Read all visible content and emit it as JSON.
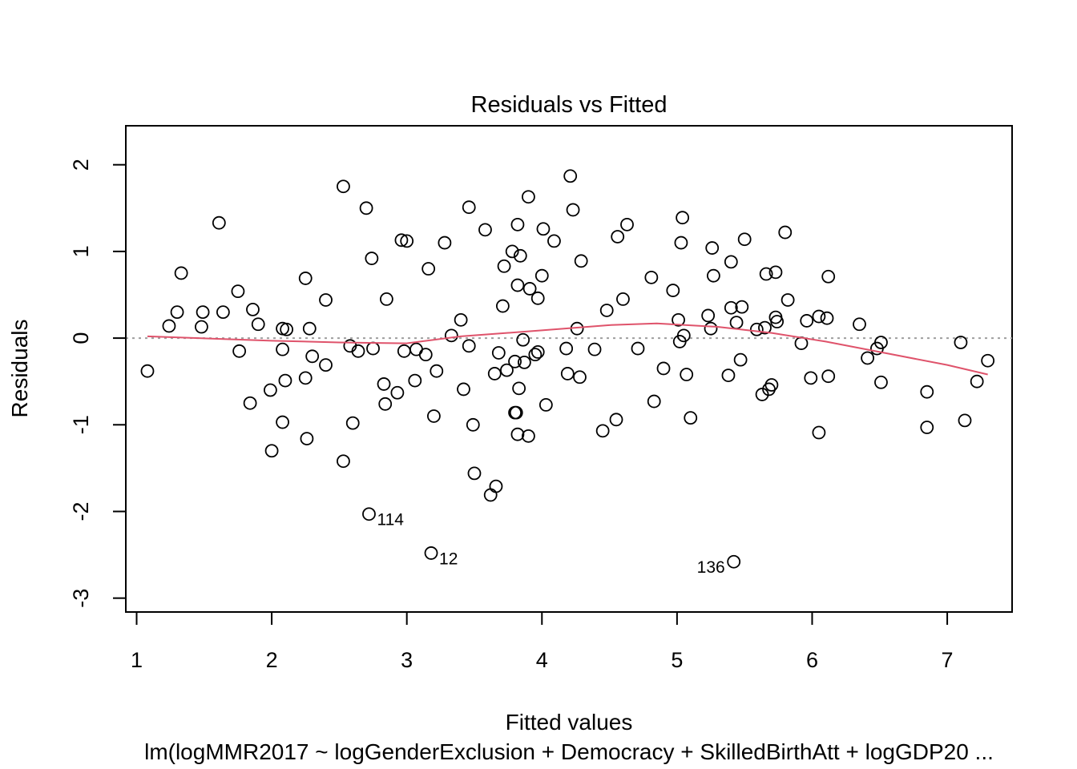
{
  "chart_data": {
    "type": "scatter",
    "title": "Residuals vs Fitted",
    "subtitle": "lm(logMMR2017 ~ logGenderExclusion + Democracy + SkilledBirthAtt + logGDP20 ...",
    "xlabel": "Fitted values",
    "ylabel": "Residuals",
    "xlim": [
      0.92,
      7.48
    ],
    "ylim": [
      -3.16,
      2.45
    ],
    "xticks": [
      1,
      2,
      3,
      4,
      5,
      6,
      7
    ],
    "yticks": [
      -3,
      -2,
      -1,
      0,
      1,
      2
    ],
    "reference_line_y": 0,
    "colors": {
      "points": "#000000",
      "smooth": "#df536b",
      "reference": "#9e9e9e"
    },
    "points": [
      {
        "x": 1.08,
        "y": -0.38
      },
      {
        "x": 1.24,
        "y": 0.14
      },
      {
        "x": 1.3,
        "y": 0.3
      },
      {
        "x": 1.33,
        "y": 0.75
      },
      {
        "x": 1.48,
        "y": 0.13
      },
      {
        "x": 1.49,
        "y": 0.3
      },
      {
        "x": 1.61,
        "y": 1.33
      },
      {
        "x": 1.64,
        "y": 0.3
      },
      {
        "x": 1.75,
        "y": 0.54
      },
      {
        "x": 1.76,
        "y": -0.15
      },
      {
        "x": 1.84,
        "y": -0.75
      },
      {
        "x": 1.86,
        "y": 0.33
      },
      {
        "x": 1.9,
        "y": 0.16
      },
      {
        "x": 1.99,
        "y": -0.6
      },
      {
        "x": 2.0,
        "y": -1.3
      },
      {
        "x": 2.08,
        "y": 0.11
      },
      {
        "x": 2.08,
        "y": -0.13
      },
      {
        "x": 2.08,
        "y": -0.97
      },
      {
        "x": 2.1,
        "y": -0.49
      },
      {
        "x": 2.11,
        "y": 0.1
      },
      {
        "x": 2.25,
        "y": 0.69
      },
      {
        "x": 2.25,
        "y": -0.46
      },
      {
        "x": 2.26,
        "y": -1.16
      },
      {
        "x": 2.28,
        "y": 0.11
      },
      {
        "x": 2.3,
        "y": -0.21
      },
      {
        "x": 2.4,
        "y": 0.44
      },
      {
        "x": 2.4,
        "y": -0.31
      },
      {
        "x": 2.53,
        "y": 1.75
      },
      {
        "x": 2.53,
        "y": -1.42
      },
      {
        "x": 2.58,
        "y": -0.09
      },
      {
        "x": 2.6,
        "y": -0.98
      },
      {
        "x": 2.64,
        "y": -0.15
      },
      {
        "x": 2.7,
        "y": 1.5
      },
      {
        "x": 2.72,
        "y": -2.03,
        "label": "114"
      },
      {
        "x": 2.74,
        "y": 0.92
      },
      {
        "x": 2.75,
        "y": -0.12
      },
      {
        "x": 2.83,
        "y": -0.53
      },
      {
        "x": 2.84,
        "y": -0.76
      },
      {
        "x": 2.85,
        "y": 0.45
      },
      {
        "x": 2.93,
        "y": -0.63
      },
      {
        "x": 2.96,
        "y": 1.13
      },
      {
        "x": 2.98,
        "y": -0.15
      },
      {
        "x": 3.0,
        "y": 1.12
      },
      {
        "x": 3.06,
        "y": -0.49
      },
      {
        "x": 3.07,
        "y": -0.13
      },
      {
        "x": 3.14,
        "y": -0.19
      },
      {
        "x": 3.16,
        "y": 0.8
      },
      {
        "x": 3.18,
        "y": -2.48,
        "label": "12"
      },
      {
        "x": 3.2,
        "y": -0.9
      },
      {
        "x": 3.22,
        "y": -0.38
      },
      {
        "x": 3.28,
        "y": 1.1
      },
      {
        "x": 3.33,
        "y": 0.03
      },
      {
        "x": 3.4,
        "y": 0.21
      },
      {
        "x": 3.42,
        "y": -0.59
      },
      {
        "x": 3.46,
        "y": 1.51
      },
      {
        "x": 3.46,
        "y": -0.09
      },
      {
        "x": 3.49,
        "y": -1.0
      },
      {
        "x": 3.5,
        "y": -1.56
      },
      {
        "x": 3.58,
        "y": 1.25
      },
      {
        "x": 3.62,
        "y": -1.81
      },
      {
        "x": 3.65,
        "y": -0.41
      },
      {
        "x": 3.66,
        "y": -1.71
      },
      {
        "x": 3.68,
        "y": -0.17
      },
      {
        "x": 3.71,
        "y": 0.37
      },
      {
        "x": 3.72,
        "y": 0.83
      },
      {
        "x": 3.74,
        "y": -0.37
      },
      {
        "x": 3.78,
        "y": 1.0
      },
      {
        "x": 3.8,
        "y": -0.86
      },
      {
        "x": 3.8,
        "y": -0.27
      },
      {
        "x": 3.81,
        "y": -0.86
      },
      {
        "x": 3.82,
        "y": 0.61
      },
      {
        "x": 3.82,
        "y": -1.11
      },
      {
        "x": 3.82,
        "y": 1.31
      },
      {
        "x": 3.83,
        "y": -0.58
      },
      {
        "x": 3.84,
        "y": 0.95
      },
      {
        "x": 3.86,
        "y": -0.02
      },
      {
        "x": 3.87,
        "y": -0.28
      },
      {
        "x": 3.9,
        "y": 1.63
      },
      {
        "x": 3.9,
        "y": -1.13
      },
      {
        "x": 3.91,
        "y": 0.57
      },
      {
        "x": 3.95,
        "y": -0.19
      },
      {
        "x": 3.97,
        "y": -0.16
      },
      {
        "x": 3.97,
        "y": 0.46
      },
      {
        "x": 4.0,
        "y": 0.72
      },
      {
        "x": 4.01,
        "y": 1.26
      },
      {
        "x": 4.03,
        "y": -0.77
      },
      {
        "x": 4.09,
        "y": 1.12
      },
      {
        "x": 4.18,
        "y": -0.12
      },
      {
        "x": 4.19,
        "y": -0.41
      },
      {
        "x": 4.21,
        "y": 1.87
      },
      {
        "x": 4.23,
        "y": 1.48
      },
      {
        "x": 4.26,
        "y": 0.11
      },
      {
        "x": 4.28,
        "y": -0.45
      },
      {
        "x": 4.29,
        "y": 0.89
      },
      {
        "x": 4.39,
        "y": -0.13
      },
      {
        "x": 4.45,
        "y": -1.07
      },
      {
        "x": 4.48,
        "y": 0.32
      },
      {
        "x": 4.55,
        "y": -0.94
      },
      {
        "x": 4.56,
        "y": 1.17
      },
      {
        "x": 4.6,
        "y": 0.45
      },
      {
        "x": 4.63,
        "y": 1.31
      },
      {
        "x": 4.71,
        "y": -0.12
      },
      {
        "x": 4.81,
        "y": 0.7
      },
      {
        "x": 4.83,
        "y": -0.73
      },
      {
        "x": 4.9,
        "y": -0.35
      },
      {
        "x": 4.97,
        "y": 0.55
      },
      {
        "x": 5.01,
        "y": 0.21
      },
      {
        "x": 5.02,
        "y": -0.04
      },
      {
        "x": 5.03,
        "y": 1.1
      },
      {
        "x": 5.04,
        "y": 1.39
      },
      {
        "x": 5.05,
        "y": 0.03
      },
      {
        "x": 5.07,
        "y": -0.42
      },
      {
        "x": 5.1,
        "y": -0.92
      },
      {
        "x": 5.23,
        "y": 0.26
      },
      {
        "x": 5.25,
        "y": 0.11
      },
      {
        "x": 5.26,
        "y": 1.04
      },
      {
        "x": 5.27,
        "y": 0.72
      },
      {
        "x": 5.38,
        "y": -0.43
      },
      {
        "x": 5.4,
        "y": 0.88
      },
      {
        "x": 5.4,
        "y": 0.35
      },
      {
        "x": 5.42,
        "y": -2.58,
        "label": "136"
      },
      {
        "x": 5.44,
        "y": 0.18
      },
      {
        "x": 5.47,
        "y": -0.25
      },
      {
        "x": 5.48,
        "y": 0.36
      },
      {
        "x": 5.5,
        "y": 1.14
      },
      {
        "x": 5.59,
        "y": 0.1
      },
      {
        "x": 5.63,
        "y": -0.65
      },
      {
        "x": 5.65,
        "y": 0.12
      },
      {
        "x": 5.66,
        "y": 0.74
      },
      {
        "x": 5.68,
        "y": -0.59
      },
      {
        "x": 5.7,
        "y": -0.54
      },
      {
        "x": 5.73,
        "y": 0.76
      },
      {
        "x": 5.73,
        "y": 0.24
      },
      {
        "x": 5.74,
        "y": 0.19
      },
      {
        "x": 5.8,
        "y": 1.22
      },
      {
        "x": 5.82,
        "y": 0.44
      },
      {
        "x": 5.92,
        "y": -0.06
      },
      {
        "x": 5.96,
        "y": 0.2
      },
      {
        "x": 5.99,
        "y": -0.46
      },
      {
        "x": 6.05,
        "y": 0.25
      },
      {
        "x": 6.05,
        "y": -1.09
      },
      {
        "x": 6.11,
        "y": 0.23
      },
      {
        "x": 6.12,
        "y": 0.71
      },
      {
        "x": 6.12,
        "y": -0.44
      },
      {
        "x": 6.35,
        "y": 0.16
      },
      {
        "x": 6.41,
        "y": -0.23
      },
      {
        "x": 6.48,
        "y": -0.12
      },
      {
        "x": 6.51,
        "y": -0.05
      },
      {
        "x": 6.51,
        "y": -0.51
      },
      {
        "x": 6.85,
        "y": -0.62
      },
      {
        "x": 6.85,
        "y": -1.03
      },
      {
        "x": 7.1,
        "y": -0.05
      },
      {
        "x": 7.13,
        "y": -0.95
      },
      {
        "x": 7.22,
        "y": -0.5
      },
      {
        "x": 7.3,
        "y": -0.26
      }
    ],
    "smooth_line": [
      {
        "x": 1.08,
        "y": 0.02
      },
      {
        "x": 2.0,
        "y": -0.03
      },
      {
        "x": 2.5,
        "y": -0.05
      },
      {
        "x": 3.0,
        "y": -0.06
      },
      {
        "x": 3.4,
        "y": 0.02
      },
      {
        "x": 4.0,
        "y": 0.09
      },
      {
        "x": 4.5,
        "y": 0.15
      },
      {
        "x": 4.85,
        "y": 0.17
      },
      {
        "x": 5.3,
        "y": 0.13
      },
      {
        "x": 5.7,
        "y": 0.06
      },
      {
        "x": 6.1,
        "y": -0.04
      },
      {
        "x": 6.5,
        "y": -0.16
      },
      {
        "x": 7.0,
        "y": -0.31
      },
      {
        "x": 7.3,
        "y": -0.42
      }
    ]
  }
}
